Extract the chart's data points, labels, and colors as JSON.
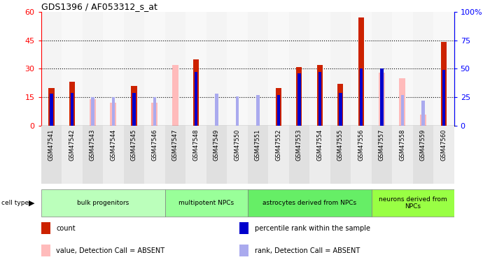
{
  "title": "GDS1396 / AF053312_s_at",
  "samples": [
    "GSM47541",
    "GSM47542",
    "GSM47543",
    "GSM47544",
    "GSM47545",
    "GSM47546",
    "GSM47547",
    "GSM47548",
    "GSM47549",
    "GSM47550",
    "GSM47551",
    "GSM47552",
    "GSM47553",
    "GSM47554",
    "GSM47555",
    "GSM47556",
    "GSM47557",
    "GSM47558",
    "GSM47559",
    "GSM47560"
  ],
  "count": [
    20,
    23,
    0,
    0,
    21,
    0,
    0,
    35,
    0,
    0,
    0,
    20,
    31,
    32,
    22,
    57,
    0,
    0,
    0,
    44
  ],
  "percentile": [
    28,
    29,
    0,
    0,
    29,
    0,
    0,
    47,
    0,
    0,
    0,
    27,
    46,
    47,
    29,
    50,
    50,
    0,
    0,
    49
  ],
  "absent_count": [
    0,
    0,
    14,
    12,
    0,
    12,
    32,
    0,
    0,
    0,
    0,
    0,
    0,
    0,
    0,
    0,
    28,
    25,
    6,
    0
  ],
  "absent_rank": [
    0,
    0,
    25,
    25,
    0,
    25,
    0,
    0,
    28,
    26,
    27,
    27,
    0,
    0,
    0,
    0,
    0,
    27,
    22,
    0
  ],
  "is_present": [
    true,
    true,
    false,
    false,
    true,
    false,
    true,
    true,
    false,
    false,
    false,
    true,
    true,
    true,
    true,
    true,
    true,
    false,
    false,
    true
  ],
  "cell_types": [
    {
      "label": "bulk progenitors",
      "start": 0,
      "end": 6,
      "color": "#bbffbb"
    },
    {
      "label": "multipotent NPCs",
      "start": 6,
      "end": 10,
      "color": "#99ff99"
    },
    {
      "label": "astrocytes derived from NPCs",
      "start": 10,
      "end": 16,
      "color": "#66ee66"
    },
    {
      "label": "neurons derived from\nNPCs",
      "start": 16,
      "end": 20,
      "color": "#99ff44"
    }
  ],
  "ylim_left": [
    0,
    60
  ],
  "ylim_right": [
    0,
    100
  ],
  "yticks_left": [
    0,
    15,
    30,
    45,
    60
  ],
  "yticks_right": [
    0,
    25,
    50,
    75,
    100
  ],
  "hgrid_vals": [
    15,
    30,
    45
  ],
  "count_color": "#cc2200",
  "absent_count_color": "#ffbbbb",
  "percentile_color": "#0000cc",
  "absent_rank_color": "#aaaaee",
  "legend_items": [
    {
      "color": "#cc2200",
      "label": "count"
    },
    {
      "color": "#0000cc",
      "label": "percentile rank within the sample"
    },
    {
      "color": "#ffbbbb",
      "label": "value, Detection Call = ABSENT"
    },
    {
      "color": "#aaaaee",
      "label": "rank, Detection Call = ABSENT"
    }
  ]
}
